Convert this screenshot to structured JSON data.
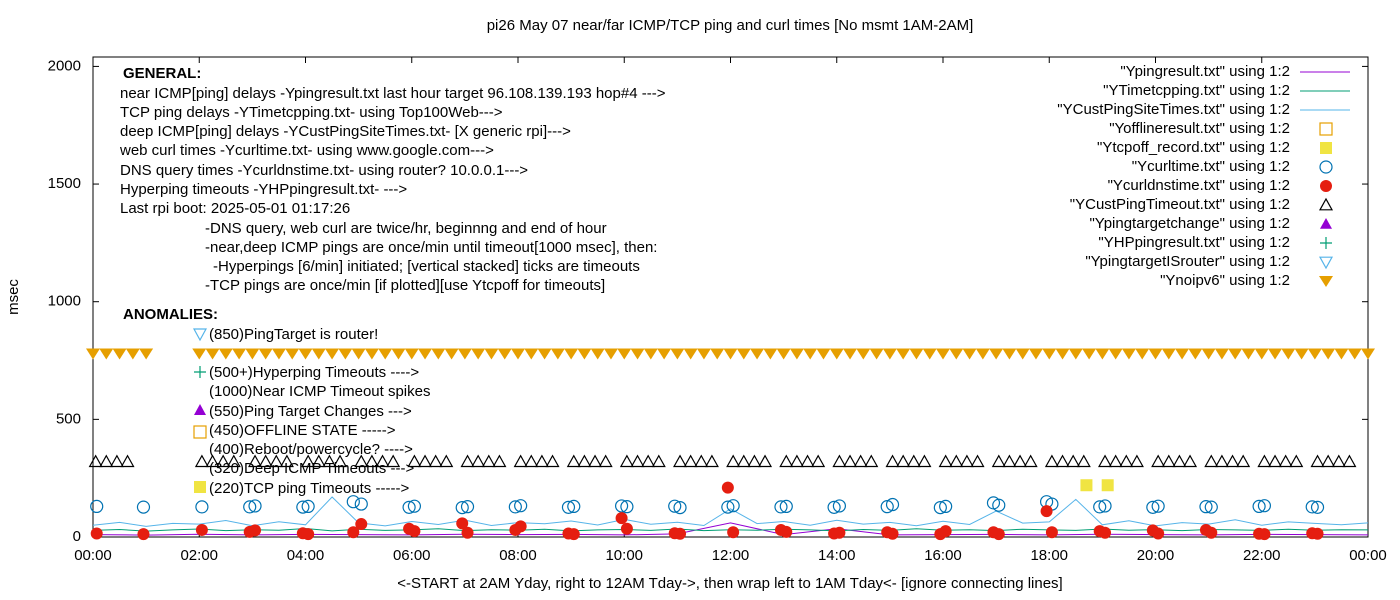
{
  "chart_data": {
    "type": "scatter",
    "title": "pi26 May 07  near/far ICMP/TCP ping and curl times [No msmt 1AM-2AM]",
    "xlabel": "<-START at 2AM Yday, right to 12AM Tday->, then wrap left to 1AM Tday<- [ignore connecting lines]",
    "ylabel": "msec",
    "xlim": [
      0,
      24
    ],
    "xticks": [
      {
        "value": 0,
        "label": "00:00"
      },
      {
        "value": 2,
        "label": "02:00"
      },
      {
        "value": 4,
        "label": "04:00"
      },
      {
        "value": 6,
        "label": "06:00"
      },
      {
        "value": 8,
        "label": "08:00"
      },
      {
        "value": 10,
        "label": "10:00"
      },
      {
        "value": 12,
        "label": "12:00"
      },
      {
        "value": 14,
        "label": "14:00"
      },
      {
        "value": 16,
        "label": "16:00"
      },
      {
        "value": 18,
        "label": "18:00"
      },
      {
        "value": 20,
        "label": "20:00"
      },
      {
        "value": 22,
        "label": "22:00"
      },
      {
        "value": 24,
        "label": "00:00"
      }
    ],
    "ylim": [
      0,
      2040
    ],
    "yticks": [
      0,
      500,
      1000,
      1500,
      2000
    ],
    "grid": false,
    "legend": "top-right",
    "annotations": [
      "GENERAL:",
      "near ICMP[ping] delays -Ypingresult.txt last hour target 96.108.139.193 hop#4 --->",
      "TCP ping delays -YTimetcpping.txt- using Top100Web--->",
      "deep ICMP[ping] delays -YCustPingSiteTimes.txt- [X generic rpi]--->",
      "web curl times -Ycurltime.txt- using www.google.com--->",
      "DNS query times -Ycurldnstime.txt- using router? 10.0.0.1--->",
      "Hyperping timeouts -YHPpingresult.txt- --->",
      "Last rpi boot: 2025-05-01 01:17:26",
      "-DNS query, web curl are twice/hr, beginnng and end of hour",
      "-near,deep ICMP pings are once/min until timeout[1000 msec], then:",
      "-Hyperpings [6/min] initiated; [vertical stacked] ticks are timeouts",
      "-TCP pings are once/min [if plotted][use Ytcpoff for timeouts]",
      "ANOMALIES:",
      "(850)PingTarget is router!",
      "(500+)Hyperping Timeouts ---->",
      "(1000)Near ICMP Timeout spikes",
      "(550)Ping Target Changes --->",
      "(450)OFFLINE STATE ----->",
      "(400)Reboot/powercycle? ---->",
      "(320)Deep ICMP Timeouts --->",
      "(220)TCP ping Timeouts ----->"
    ],
    "series": [
      {
        "name": "\"Ypingresult.txt\" using 1:2",
        "color": "#9400d3",
        "marker": "line",
        "x": [
          0,
          1,
          2,
          3,
          4,
          5,
          6,
          7,
          8,
          9,
          10,
          11,
          12,
          13,
          14,
          15,
          16,
          17,
          18,
          19,
          20,
          21,
          22,
          23,
          24
        ],
        "values": [
          10,
          8,
          12,
          9,
          11,
          10,
          9,
          12,
          10,
          11,
          9,
          13,
          60,
          10,
          35,
          9,
          10,
          11,
          9,
          12,
          10,
          9,
          11,
          10,
          9
        ]
      },
      {
        "name": "\"YTimetcpping.txt\" using 1:2",
        "color": "#009e73",
        "marker": "line",
        "x": [
          0,
          0.5,
          1,
          1.5,
          2,
          2.5,
          3,
          3.5,
          4,
          4.5,
          5,
          5.5,
          6,
          6.5,
          7,
          7.5,
          8,
          8.5,
          9,
          9.5,
          10,
          10.5,
          11,
          11.5,
          12,
          12.5,
          13,
          13.5,
          14,
          14.5,
          15,
          15.5,
          16,
          16.5,
          17,
          17.5,
          18,
          18.5,
          19,
          19.5,
          20,
          20.5,
          21,
          21.5,
          22,
          22.5,
          23,
          23.5,
          24
        ],
        "values": [
          28,
          32,
          25,
          30,
          34,
          27,
          31,
          29,
          36,
          26,
          33,
          28,
          30,
          35,
          27,
          31,
          29,
          33,
          26,
          30,
          32,
          28,
          34,
          27,
          31,
          29,
          33,
          30,
          26,
          32,
          28,
          35,
          29,
          31,
          27,
          33,
          30,
          28,
          34,
          29,
          31,
          27,
          32,
          30,
          28,
          33,
          29,
          31,
          30
        ]
      },
      {
        "name": "\"YCustPingSiteTimes.txt\" using 1:2",
        "color": "#56b4e9",
        "marker": "line",
        "x": [
          0,
          0.5,
          1,
          1.5,
          2,
          2.5,
          3,
          3.5,
          4,
          4.5,
          5,
          5.5,
          6,
          6.5,
          7,
          7.5,
          8,
          8.5,
          9,
          9.5,
          10,
          10.5,
          11,
          11.5,
          12,
          12.5,
          13,
          13.5,
          14,
          14.5,
          15,
          15.5,
          16,
          16.5,
          17,
          17.5,
          18,
          18.5,
          19,
          19.5,
          20,
          20.5,
          21,
          21.5,
          22,
          22.5,
          23,
          23.5,
          24
        ],
        "values": [
          50,
          62,
          45,
          58,
          55,
          70,
          48,
          65,
          52,
          170,
          60,
          47,
          66,
          53,
          72,
          49,
          61,
          56,
          68,
          51,
          75,
          54,
          63,
          49,
          120,
          57,
          66,
          50,
          71,
          55,
          62,
          48,
          67,
          53,
          110,
          59,
          64,
          160,
          52,
          69,
          47,
          61,
          55,
          73,
          50,
          64,
          58,
          52,
          60
        ]
      },
      {
        "name": "\"Yofflineresult.txt\" using 1:2",
        "color": "#e69f00",
        "marker": "square",
        "x": [],
        "values": []
      },
      {
        "name": "\"Ytcpoff_record.txt\" using 1:2",
        "color": "#f0e442",
        "marker": "square-filled",
        "x": [
          18.7,
          19.1
        ],
        "values": [
          220,
          220
        ]
      },
      {
        "name": "\"Ycurltime.txt\" using 1:2",
        "color": "#0072b2",
        "marker": "circle",
        "x": [
          0.07,
          0.95,
          2.05,
          2.95,
          3.05,
          3.95,
          4.05,
          4.9,
          5.05,
          5.95,
          6.05,
          6.95,
          7.05,
          7.95,
          8.05,
          8.95,
          9.05,
          9.95,
          10.05,
          10.95,
          11.05,
          11.95,
          12.05,
          12.95,
          13.05,
          13.95,
          14.05,
          14.95,
          15.05,
          15.95,
          16.05,
          16.95,
          17.05,
          17.95,
          18.05,
          18.95,
          19.05,
          19.95,
          20.05,
          20.95,
          21.05,
          21.95,
          22.05,
          22.95,
          23.05
        ],
        "values": [
          130,
          127,
          128,
          128,
          132,
          127,
          130,
          150,
          140,
          126,
          131,
          125,
          129,
          128,
          133,
          126,
          130,
          132,
          129,
          131,
          125,
          127,
          133,
          128,
          130,
          126,
          132,
          129,
          138,
          125,
          130,
          145,
          135,
          150,
          140,
          128,
          132,
          126,
          131,
          129,
          127,
          130,
          133,
          128,
          126
        ]
      },
      {
        "name": "\"Ycurldnstime.txt\" using 1:2",
        "color": "#e51e10",
        "marker": "circle-filled",
        "x": [
          0.07,
          0.95,
          2.05,
          2.95,
          3.05,
          3.95,
          4.05,
          4.9,
          5.05,
          5.95,
          6.05,
          6.95,
          7.05,
          7.95,
          8.05,
          8.95,
          9.05,
          9.95,
          10.05,
          10.95,
          11.05,
          11.95,
          12.05,
          12.95,
          13.05,
          13.95,
          14.05,
          14.95,
          15.05,
          15.95,
          16.05,
          16.95,
          17.05,
          17.95,
          18.05,
          18.95,
          19.05,
          19.95,
          20.05,
          20.95,
          21.05,
          21.95,
          22.05,
          22.95,
          23.05
        ],
        "values": [
          15,
          12,
          30,
          22,
          28,
          16,
          12,
          20,
          55,
          35,
          25,
          58,
          18,
          30,
          45,
          15,
          12,
          80,
          35,
          16,
          14,
          210,
          20,
          30,
          22,
          15,
          18,
          20,
          14,
          12,
          25,
          20,
          12,
          110,
          20,
          25,
          18,
          28,
          15,
          30,
          18,
          14,
          12,
          16,
          14
        ]
      },
      {
        "name": "\"YCustPingTimeout.txt\" using 1:2",
        "color": "#000000",
        "marker": "triangle",
        "x": [
          0.05,
          0.25,
          0.45,
          0.65,
          2.05,
          2.25,
          2.45,
          2.65,
          3.05,
          3.25,
          3.45,
          3.65,
          4.05,
          4.25,
          4.45,
          4.65,
          5.05,
          5.25,
          5.45,
          5.65,
          6.05,
          6.25,
          6.45,
          6.65,
          7.05,
          7.25,
          7.45,
          7.65,
          8.05,
          8.25,
          8.45,
          8.65,
          9.05,
          9.25,
          9.45,
          9.65,
          10.05,
          10.25,
          10.45,
          10.65,
          11.05,
          11.25,
          11.45,
          11.65,
          12.05,
          12.25,
          12.45,
          12.65,
          13.05,
          13.25,
          13.45,
          13.65,
          14.05,
          14.25,
          14.45,
          14.65,
          15.05,
          15.25,
          15.45,
          15.65,
          16.05,
          16.25,
          16.45,
          16.65,
          17.05,
          17.25,
          17.45,
          17.65,
          18.05,
          18.25,
          18.45,
          18.65,
          19.05,
          19.25,
          19.45,
          19.65,
          20.05,
          20.25,
          20.45,
          20.65,
          21.05,
          21.25,
          21.45,
          21.65,
          22.05,
          22.25,
          22.45,
          22.65,
          23.05,
          23.25,
          23.45,
          23.65
        ],
        "values": [
          320,
          320,
          320,
          320,
          320,
          320,
          320,
          320,
          320,
          320,
          320,
          320,
          320,
          320,
          320,
          320,
          320,
          320,
          320,
          320,
          320,
          320,
          320,
          320,
          320,
          320,
          320,
          320,
          320,
          320,
          320,
          320,
          320,
          320,
          320,
          320,
          320,
          320,
          320,
          320,
          320,
          320,
          320,
          320,
          320,
          320,
          320,
          320,
          320,
          320,
          320,
          320,
          320,
          320,
          320,
          320,
          320,
          320,
          320,
          320,
          320,
          320,
          320,
          320,
          320,
          320,
          320,
          320,
          320,
          320,
          320,
          320,
          320,
          320,
          320,
          320,
          320,
          320,
          320,
          320,
          320,
          320,
          320,
          320,
          320,
          320,
          320,
          320,
          320,
          320,
          320,
          320
        ]
      },
      {
        "name": "\"Ypingtargetchange\" using 1:2",
        "color": "#9400d3",
        "marker": "triangle-filled",
        "x": [],
        "values": []
      },
      {
        "name": "\"YHPpingresult.txt\" using 1:2",
        "color": "#009e73",
        "marker": "plus",
        "x": [],
        "values": []
      },
      {
        "name": "\"YpingtargetISrouter\" using 1:2",
        "color": "#56b4e9",
        "marker": "triangle-down",
        "x": [],
        "values": []
      },
      {
        "name": "\"Ynoipv6\" using 1:2",
        "color": "#e69f00",
        "marker": "triangle-down-filled",
        "x": [
          0,
          0.25,
          0.5,
          0.75,
          1.0,
          2.0,
          2.25,
          2.5,
          2.75,
          3.0,
          3.25,
          3.5,
          3.75,
          4.0,
          4.25,
          4.5,
          4.75,
          5.0,
          5.25,
          5.5,
          5.75,
          6.0,
          6.25,
          6.5,
          6.75,
          7.0,
          7.25,
          7.5,
          7.75,
          8.0,
          8.25,
          8.5,
          8.75,
          9.0,
          9.25,
          9.5,
          9.75,
          10.0,
          10.25,
          10.5,
          10.75,
          11.0,
          11.25,
          11.5,
          11.75,
          12.0,
          12.25,
          12.5,
          12.75,
          13.0,
          13.25,
          13.5,
          13.75,
          14.0,
          14.25,
          14.5,
          14.75,
          15.0,
          15.25,
          15.5,
          15.75,
          16.0,
          16.25,
          16.5,
          16.75,
          17.0,
          17.25,
          17.5,
          17.75,
          18.0,
          18.25,
          18.5,
          18.75,
          19.0,
          19.25,
          19.5,
          19.75,
          20.0,
          20.25,
          20.5,
          20.75,
          21.0,
          21.25,
          21.5,
          21.75,
          22.0,
          22.25,
          22.5,
          22.75,
          23.0,
          23.25,
          23.5,
          23.75,
          24.0
        ],
        "values": [
          780,
          780,
          780,
          780,
          780,
          780,
          780,
          780,
          780,
          780,
          780,
          780,
          780,
          780,
          780,
          780,
          780,
          780,
          780,
          780,
          780,
          780,
          780,
          780,
          780,
          780,
          780,
          780,
          780,
          780,
          780,
          780,
          780,
          780,
          780,
          780,
          780,
          780,
          780,
          780,
          780,
          780,
          780,
          780,
          780,
          780,
          780,
          780,
          780,
          780,
          780,
          780,
          780,
          780,
          780,
          780,
          780,
          780,
          780,
          780,
          780,
          780,
          780,
          780,
          780,
          780,
          780,
          780,
          780,
          780,
          780,
          780,
          780,
          780,
          780,
          780,
          780,
          780,
          780,
          780,
          780,
          780,
          780,
          780,
          780,
          780,
          780,
          780,
          780,
          780,
          780,
          780,
          780,
          780
        ]
      }
    ]
  }
}
